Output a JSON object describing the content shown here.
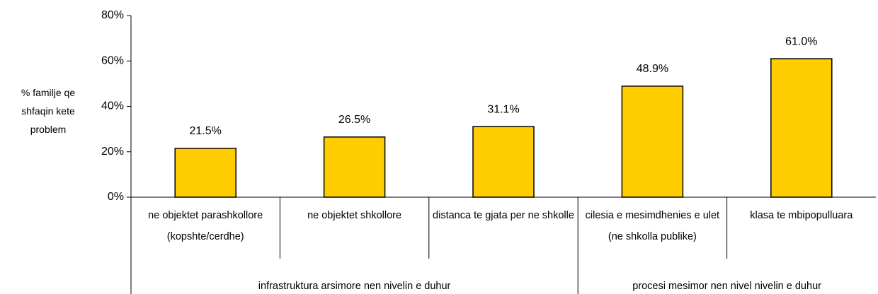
{
  "chart_data": {
    "type": "bar",
    "y_label": "% familje qe shfaqin kete problem",
    "categories": [
      "ne objektet parashkollore (kopshte/cerdhe)",
      "ne objektet shkollore",
      "distanca te gjata per ne shkolle",
      "cilesia e mesimdhenies e ulet (ne shkolla publike)",
      "klasa te mbipopulluara"
    ],
    "groups": [
      "infrastruktura arsimore nen nivelin e duhur",
      "procesi mesimor nen nivel nivelin e duhur"
    ],
    "values": [
      21.5,
      26.5,
      31.1,
      48.9,
      61.0
    ],
    "value_labels": [
      "21.5%",
      "26.5%",
      "31.1%",
      "48.9%",
      "61.0%"
    ],
    "color": "#ffcc00",
    "ylim": [
      0,
      80
    ],
    "yticks": [
      {
        "value": 0,
        "label": "0%"
      },
      {
        "value": 20,
        "label": "20%"
      },
      {
        "value": 40,
        "label": "40%"
      },
      {
        "value": 60,
        "label": "60%"
      },
      {
        "value": 80,
        "label": "80%"
      }
    ],
    "grid": false
  }
}
